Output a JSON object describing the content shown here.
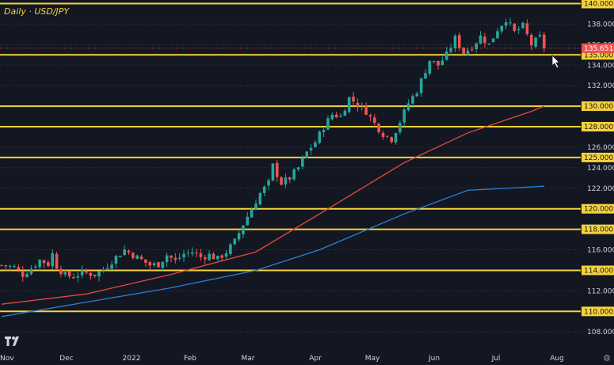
{
  "chart_data": {
    "type": "candlestick",
    "title": "Daily · USD/JPY",
    "ylim": [
      107,
      141
    ],
    "y_ticks": [
      108,
      110,
      112,
      114,
      116,
      118,
      120,
      122,
      124,
      126,
      128,
      130,
      132,
      134,
      136,
      138,
      140
    ],
    "y_tick_labels": [
      "108.000",
      "110.000",
      "112.000",
      "114.000",
      "116.000",
      "118.000",
      "120.000",
      "122.000",
      "124.000",
      "126.000",
      "128.000",
      "130.000",
      "132.000",
      "134.000",
      "136.000",
      "138.000",
      "140.000"
    ],
    "x_labels": [
      "Nov",
      "Dec",
      "2022",
      "Feb",
      "Mar",
      "Apr",
      "May",
      "Jun",
      "Jul",
      "Aug"
    ],
    "horizontal_levels": [
      140,
      135,
      130,
      128,
      125,
      120,
      118,
      114,
      110
    ],
    "level_labels": [
      "140.000",
      "135.000",
      "130.000",
      "128.000",
      "125.000",
      "120.000",
      "118.000",
      "114.000",
      "110.000"
    ],
    "last_price": 135.651,
    "last_price_label": "135.651",
    "colors": {
      "background": "#131722",
      "level": "#f5d23b",
      "up": "#26a69a",
      "down": "#ef5350",
      "ma_fast": "#e8493c",
      "ma_slow": "#2a7fd4",
      "text": "#d1d4dc",
      "price_tag": "#ef5350"
    },
    "keypoints": [
      [
        0,
        114.5
      ],
      [
        3,
        114.3
      ],
      [
        5,
        113.6
      ],
      [
        7,
        114.2
      ],
      [
        9,
        115.0
      ],
      [
        11,
        114.6
      ],
      [
        12,
        115.6
      ],
      [
        13,
        114.4
      ],
      [
        15,
        113.5
      ],
      [
        17,
        113.4
      ],
      [
        19,
        113.8
      ],
      [
        22,
        113.6
      ],
      [
        24,
        114.1
      ],
      [
        27,
        115.3
      ],
      [
        29,
        116.0
      ],
      [
        31,
        115.5
      ],
      [
        33,
        115.0
      ],
      [
        35,
        114.5
      ],
      [
        37,
        114.6
      ],
      [
        39,
        115.5
      ],
      [
        41,
        114.9
      ],
      [
        43,
        115.6
      ],
      [
        45,
        115.8
      ],
      [
        47,
        115.3
      ],
      [
        49,
        115.5
      ],
      [
        51,
        115.1
      ],
      [
        53,
        115.8
      ],
      [
        55,
        116.8
      ],
      [
        57,
        118.5
      ],
      [
        59,
        120.0
      ],
      [
        61,
        121.5
      ],
      [
        63,
        122.5
      ],
      [
        64,
        124.2
      ],
      [
        66,
        122.5
      ],
      [
        68,
        123.0
      ],
      [
        70,
        124.0
      ],
      [
        72,
        125.5
      ],
      [
        74,
        126.5
      ],
      [
        76,
        128.0
      ],
      [
        78,
        129.2
      ],
      [
        80,
        129.0
      ],
      [
        82,
        130.8
      ],
      [
        84,
        130.2
      ],
      [
        86,
        129.5
      ],
      [
        88,
        128.3
      ],
      [
        90,
        127.3
      ],
      [
        92,
        126.8
      ],
      [
        94,
        128.5
      ],
      [
        96,
        130.3
      ],
      [
        98,
        131.5
      ],
      [
        100,
        133.5
      ],
      [
        101,
        134.5
      ],
      [
        103,
        134.0
      ],
      [
        105,
        135.0
      ],
      [
        107,
        136.6
      ],
      [
        109,
        135.2
      ],
      [
        111,
        135.8
      ],
      [
        113,
        136.8
      ],
      [
        115,
        136.0
      ],
      [
        117,
        137.5
      ],
      [
        119,
        138.5
      ],
      [
        121,
        137.2
      ],
      [
        123,
        137.8
      ],
      [
        125,
        136.0
      ],
      [
        127,
        136.7
      ],
      [
        128,
        135.65
      ]
    ],
    "ma_fast": [
      [
        0,
        110.7
      ],
      [
        20,
        111.7
      ],
      [
        40,
        113.6
      ],
      [
        60,
        115.8
      ],
      [
        75,
        119.5
      ],
      [
        95,
        124.5
      ],
      [
        110,
        127.4
      ],
      [
        125,
        129.5
      ],
      [
        128,
        130.0
      ]
    ],
    "ma_slow": [
      [
        0,
        109.5
      ],
      [
        20,
        110.9
      ],
      [
        40,
        112.3
      ],
      [
        60,
        114.0
      ],
      [
        75,
        116.0
      ],
      [
        95,
        119.5
      ],
      [
        110,
        121.8
      ],
      [
        128,
        122.2
      ]
    ],
    "n_candles": 129
  }
}
